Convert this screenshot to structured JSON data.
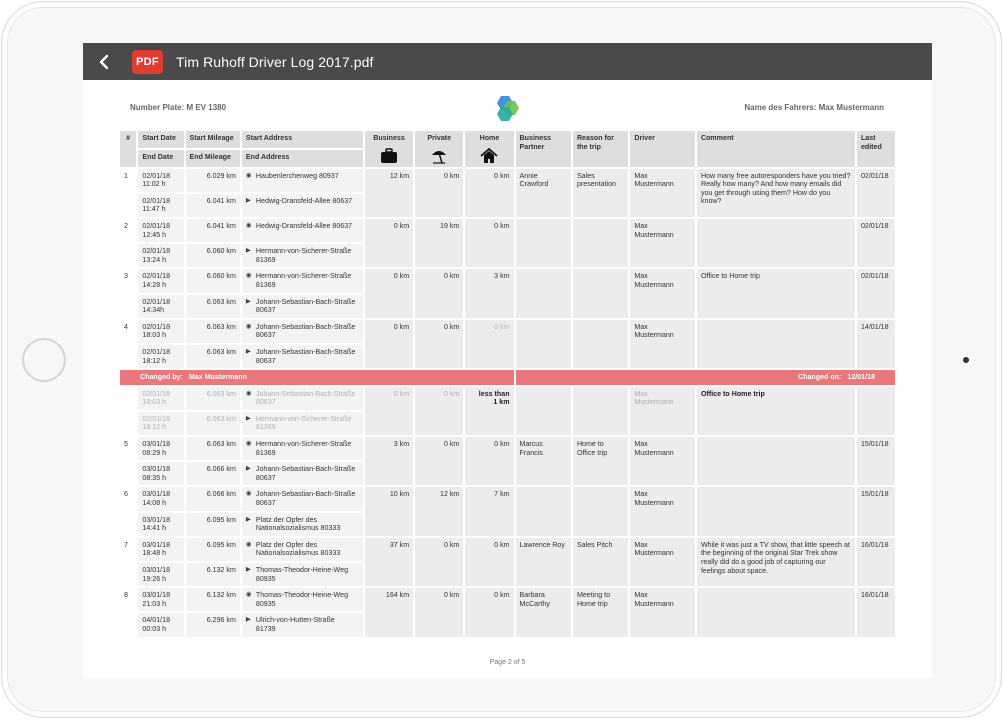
{
  "app": {
    "title": "Tim Ruhoff Driver Log 2017.pdf",
    "badge": "PDF"
  },
  "doc": {
    "plate_label": "Number Plate: M EV 1380",
    "driver_label": "Name des Fahrers: Max Mustermann",
    "page": "Page 2 of 5",
    "logo_colors": [
      "#3b8ad8",
      "#6fc24b",
      "#2aa89a"
    ]
  },
  "headers": {
    "num": "#",
    "start_date": "Start Date",
    "end_date": "End Date",
    "start_mileage": "Start Mileage",
    "end_mileage": "End Mileage",
    "start_address": "Start Address",
    "end_address": "End Address",
    "business": "Business",
    "private": "Private",
    "home": "Home",
    "partner": "Business Partner",
    "reason": "Reason for the trip",
    "driver": "Driver",
    "comment": "Comment",
    "last_edited": "Last edited"
  },
  "icons": {
    "business": "briefcase-icon",
    "private": "beach-umbrella-icon",
    "home": "house-icon",
    "start": "target-icon",
    "end": "flag-icon",
    "back": "chevron-left-icon"
  },
  "trips": [
    {
      "num": "1",
      "start_date": "02/01/18\n11:02 h",
      "start_mileage": "6.029 km",
      "start_address": "Haubenlerchenweg 80937",
      "end_date": "02/01/18\n11:47 h",
      "end_mileage": "6.041 km",
      "end_address": "Hedwig-Dransfeld-Allee 80637",
      "business": "12 km",
      "private": "0 km",
      "home": "0 km",
      "partner": "Annie\nCrawford",
      "reason": "Sales\npresentation",
      "driver": "Max\nMustermann",
      "comment": "How many free autoresponders have you tried? Really how many? And how many emails did you get through using them? How do you know?",
      "last_edited": "02/01/18"
    },
    {
      "num": "2",
      "start_date": "02/01/18\n12:45 h",
      "start_mileage": "6.041 km",
      "start_address": "Hedwig-Dransfeld-Allee 80637",
      "end_date": "02/01/18\n13:24 h",
      "end_mileage": "6.060 km",
      "end_address": "Hermann-von-Sicherer-Straße\n81369",
      "business": "0 km",
      "private": "19 km",
      "home": "0 km",
      "partner": "",
      "reason": "",
      "driver": "Max\nMustermann",
      "comment": "",
      "last_edited": "02/01/18"
    },
    {
      "num": "3",
      "start_date": "02/01/18\n14:28 h",
      "start_mileage": "6.060 km",
      "start_address": "Hermann-von-Sicherer-Straße\n81369",
      "end_date": "02/01/18\n14:34h",
      "end_mileage": "6.063 km",
      "end_address": "Johann-Sebastian-Bach-Straße\n80637",
      "business": "0 km",
      "private": "0 km",
      "home": "3 km",
      "partner": "",
      "reason": "",
      "driver": "Max\nMustermann",
      "comment": "Office to Home trip",
      "last_edited": "02/01/18"
    },
    {
      "num": "4",
      "start_date": "02/01/18\n18:03 h",
      "start_mileage": "6.063 km",
      "start_address": "Johann-Sebastian-Bach-Straße\n80637",
      "end_date": "02/01/18\n18:12 h",
      "end_mileage": "6.063 km",
      "end_address": "Johann-Sebastian-Bach-Straße\n80637",
      "business": "0 km",
      "private": "0 km",
      "home": "0 km",
      "partner": "",
      "reason": "",
      "driver": "Max\nMustermann",
      "comment": "",
      "last_edited": "14/01/18"
    }
  ],
  "change": {
    "by_label": "Changed by:",
    "by": "Max Mustermann",
    "on_label": "Changed on:",
    "on": "12/01/18",
    "start_date": "02/01/18\n18:03 h",
    "start_mileage": "6.063 km",
    "start_address": "Johann-Sebastian-Bach-Straße\n80637",
    "end_date": "02/01/18\n18:12 h",
    "end_mileage": "6.063 km",
    "end_address": "Hermann-von-Sicherer-Straße\n81369",
    "business": "0 km",
    "private": "0 km",
    "home": "less than\n1 km",
    "driver": "Max\nMustermann",
    "comment": "Office to Home trip"
  },
  "trips2": [
    {
      "num": "5",
      "start_date": "03/01/18\n08:29 h",
      "start_mileage": "6.063 km",
      "start_address": "Hermann-von-Sicherer-Straße\n81369",
      "end_date": "03/01/18\n08:35 h",
      "end_mileage": "6.066 km",
      "end_address": "Johann-Sebastian-Bach-Straße\n80637",
      "business": "3 km",
      "private": "0 km",
      "home": "0 km",
      "partner": "Marcus Francis",
      "reason": "Home to\nOffice trip",
      "driver": "Max\nMustermann",
      "comment": "",
      "last_edited": "15/01/18"
    },
    {
      "num": "6",
      "start_date": "03/01/18\n14:08 h",
      "start_mileage": "6.066 km",
      "start_address": "Johann-Sebastian-Bach-Straße\n80637",
      "end_date": "03/01/18\n14:41 h",
      "end_mileage": "6.095 km",
      "end_address": "Platz der Opfer des\nNationalsozialismus 80333",
      "business": "10 km",
      "private": "12 km",
      "home": "7 km",
      "partner": "",
      "reason": "",
      "driver": "Max\nMustermann",
      "comment": "",
      "last_edited": "15/01/18"
    },
    {
      "num": "7",
      "start_date": "03/01/18\n18:48 h",
      "start_mileage": "6.095 km",
      "start_address": "Platz der Opfer des\nNationalsozialismus 80333",
      "end_date": "03/01/18\n19:26 h",
      "end_mileage": "6.132 km",
      "end_address": "Thomas-Theodor-Heine-Weg\n80935",
      "business": "37 km",
      "private": "0 km",
      "home": "0 km",
      "partner": "Lawrence Roy",
      "reason": "Sales Pitch",
      "driver": "Max\nMustermann",
      "comment": "While it was just a TV show, that little speech at the beginning of the original Star Trek show really did do a good job of capturing our feelings about space.",
      "last_edited": "16/01/18"
    },
    {
      "num": "8",
      "start_date": "03/01/18\n21:03 h",
      "start_mileage": "6.132 km",
      "start_address": "Thomas-Theodor-Heine-Weg\n80935",
      "end_date": "04/01/18\n00:03 h",
      "end_mileage": "6.296 km",
      "end_address": "Ulrich-von-Hutten-Straße\n81739",
      "business": "164 km",
      "private": "0 km",
      "home": "0 km",
      "partner": "Barbara\nMcCarthy",
      "reason": "Meeting to\nHome trip",
      "driver": "Max\nMustermann",
      "comment": "",
      "last_edited": "16/01/18"
    }
  ]
}
